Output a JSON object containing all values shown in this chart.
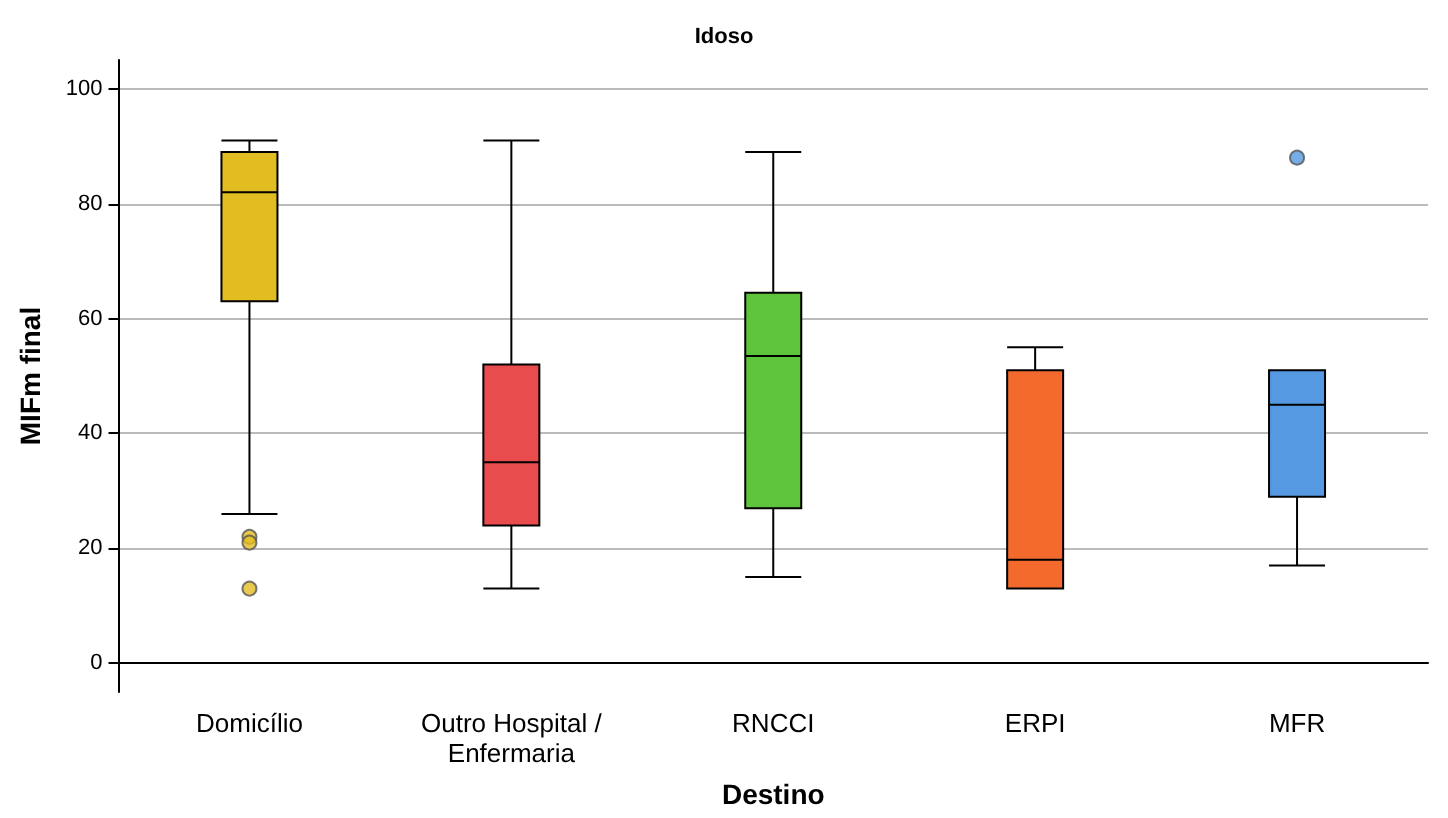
{
  "chart_data": {
    "type": "box",
    "title": "Idoso",
    "xlabel": "Destino",
    "ylabel": "MIFm final",
    "categories": [
      "Domicílio",
      "Outro Hospital /\nEnfermaria",
      "RNCCI",
      "ERPI",
      "MFR"
    ],
    "colors": [
      "#e2bd22",
      "#e84c4c",
      "#5dc43b",
      "#f36a2c",
      "#5499e2"
    ],
    "boxes": [
      {
        "low": 26,
        "q1": 63,
        "median": 82,
        "q3": 89,
        "high": 91,
        "outliers": [
          22,
          21,
          13
        ]
      },
      {
        "low": 13,
        "q1": 24,
        "median": 35,
        "q3": 52,
        "high": 91
      },
      {
        "low": 15,
        "q1": 27,
        "median": 53.5,
        "q3": 64.5,
        "high": 89
      },
      {
        "low": 13,
        "q1": 13,
        "median": 18,
        "q3": 51,
        "high": 55
      },
      {
        "low": 17,
        "q1": 29,
        "median": 45,
        "q3": 51,
        "high": 51,
        "outliers": [
          88
        ]
      }
    ],
    "ylim": [
      -5,
      105
    ],
    "yticks": [
      0,
      20,
      40,
      60,
      80,
      100
    ],
    "grid": "y"
  }
}
